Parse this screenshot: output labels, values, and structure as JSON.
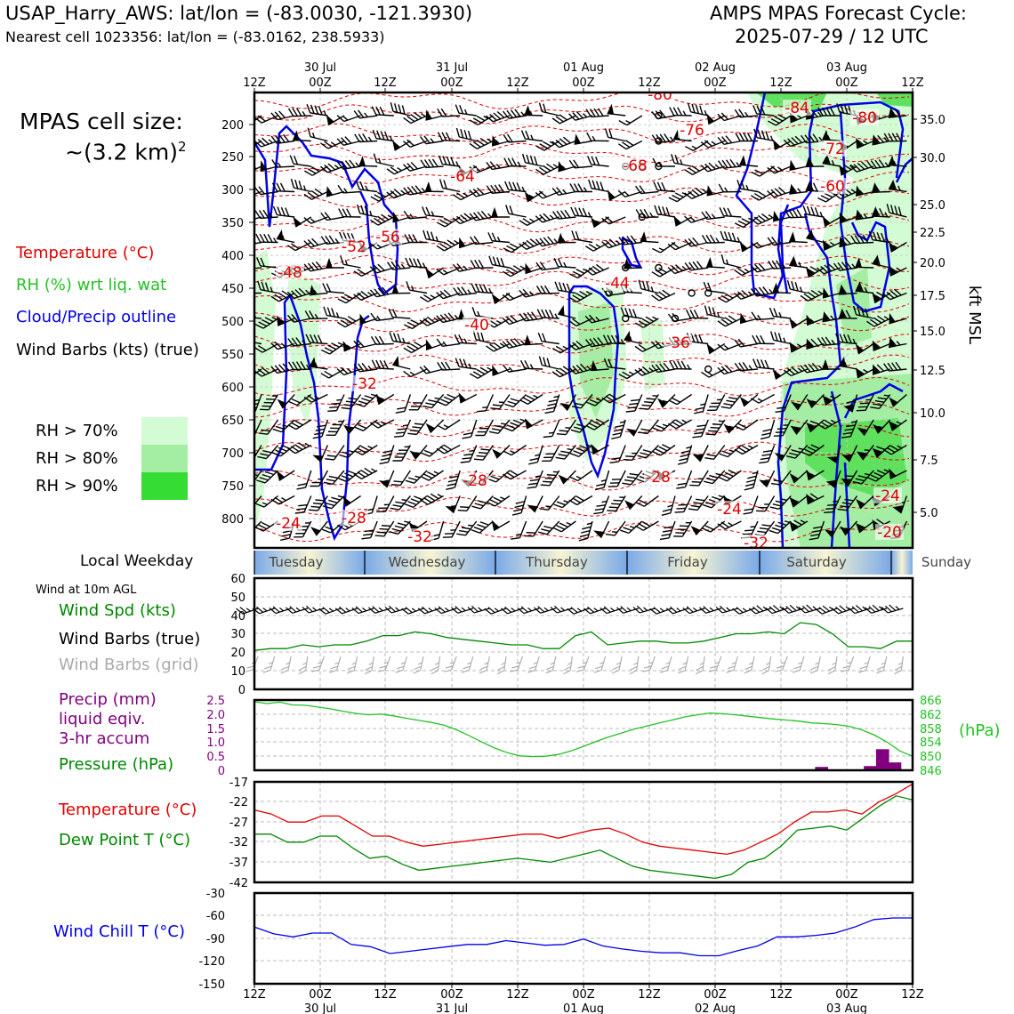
{
  "header": {
    "station_line": "USAP_Harry_AWS: lat/lon = (-83.0030, -121.3930)",
    "cell_line": "Nearest cell 1023356: lat/lon = (-83.0162, 238.5933)",
    "forecast_title_1": "AMPS MPAS Forecast Cycle:",
    "forecast_title_2": "2025-07-29 / 12 UTC"
  },
  "left_legend": {
    "cell_size_1": "MPAS cell size:",
    "cell_size_2": "~(3.2 km)",
    "cell_size_sup": "2",
    "temperature": "Temperature (°C)",
    "rh": "RH (%) wrt liq. wat",
    "cloud": "Cloud/Precip outline",
    "wind_barbs": "Wind Barbs (kts) (true)",
    "rh70": "RH > 70%",
    "rh80": "RH > 80%",
    "rh90": "RH > 90%",
    "local_weekday": "Local Weekday",
    "wind_10m": "Wind at 10m AGL",
    "wind_spd": "Wind Spd (kts)",
    "barbs_true": "Wind Barbs (true)",
    "barbs_grid": "Wind Barbs (grid)",
    "precip_1": "Precip (mm)",
    "precip_2": "liquid eqiv.",
    "precip_3": "3-hr accum",
    "pressure": "Pressure (hPa)",
    "temp2": "Temperature (°C)",
    "dewpoint": "Dew Point T (°C)",
    "windchill": "Wind Chill T (°C)"
  },
  "colors": {
    "temperature": "#e00000",
    "rh_label": "#22c322",
    "cloud": "#0000e6",
    "dewpoint": "#008800",
    "precip": "#800080",
    "grid_barbs": "#aaaaaa",
    "rh70": "#d4fcd4",
    "rh80": "#a3eea3",
    "rh90": "#34dc34"
  },
  "time_axis": {
    "top_ticks": [
      "12Z",
      "00Z",
      "12Z",
      "00Z",
      "12Z",
      "00Z",
      "12Z",
      "00Z",
      "12Z",
      "00Z",
      "12Z"
    ],
    "dates": [
      "30 Jul",
      "31 Jul",
      "01 Aug",
      "02 Aug",
      "03 Aug"
    ]
  },
  "weekdays": [
    "Tuesday",
    "Wednesday",
    "Thursday",
    "Friday",
    "Saturday",
    "Sunday"
  ],
  "chart_data": [
    {
      "type": "heatmap",
      "name": "vertical cross-section",
      "y_left_ticks": [
        "200",
        "250",
        "300",
        "350",
        "400",
        "450",
        "500",
        "550",
        "600",
        "650",
        "700",
        "750",
        "800"
      ],
      "y_right_ticks": [
        "35.0",
        "30.0",
        "25.0",
        "22.5",
        "20.0",
        "17.5",
        "15.0",
        "12.5",
        "10.0",
        "7.5",
        "5.0"
      ],
      "ylabel_right": "kft MSL",
      "temperature_labels": [
        "-80",
        "-84",
        "-80",
        "-76",
        "-72",
        "-68",
        "-64",
        "-60",
        "-56",
        "-52",
        "-48",
        "-44",
        "-40",
        "-36",
        "-32",
        "-28",
        "-28",
        "-28",
        "-24",
        "-24",
        "-24",
        "-32",
        "-32",
        "-20"
      ]
    },
    {
      "type": "line",
      "name": "wind",
      "y_ticks": [
        "60",
        "50",
        "40",
        "30",
        "20",
        "10",
        "0"
      ],
      "ylim": [
        0,
        60
      ],
      "series": [
        {
          "name": "Wind Spd (kts)",
          "color": "#008800",
          "values": [
            21,
            22,
            22,
            24,
            23,
            24,
            24,
            26,
            29,
            29,
            31,
            30,
            28,
            27,
            26,
            25,
            24,
            24,
            22,
            22,
            29,
            31,
            24,
            25,
            26,
            26,
            25,
            25,
            26,
            28,
            30,
            30,
            31,
            30,
            36,
            35,
            30,
            23,
            23,
            22,
            26,
            26
          ]
        }
      ]
    },
    {
      "type": "line",
      "name": "precip-pressure",
      "y_left_ticks": [
        "2.5",
        "2.0",
        "1.5",
        "1.0",
        "0.5",
        "0"
      ],
      "y_right_ticks": [
        "866",
        "862",
        "858",
        "854",
        "850",
        "846"
      ],
      "ylabel_right": "(hPa)",
      "series": [
        {
          "name": "Pressure (hPa)",
          "color": "#22c322",
          "values": [
            865.5,
            865,
            865.4,
            864.6,
            864.5,
            864,
            863.5,
            862.8,
            862.2,
            861.8,
            862,
            861.5,
            860.8,
            860.2,
            859.6,
            858.8,
            857.5,
            855.8,
            854,
            852.3,
            851,
            850.1,
            849.9,
            850,
            850.5,
            851.5,
            852.8,
            854.2,
            855.5,
            856.6,
            857.7,
            858.6,
            859.5,
            860.3,
            861.2,
            861.8,
            862.3,
            862.1,
            861.8,
            861.4,
            861,
            860.6,
            860.3,
            860,
            859.5,
            859.3,
            859,
            858.5,
            857.5,
            856,
            854,
            851.5,
            850
          ]
        },
        {
          "name": "Precip (mm)",
          "color": "#800080",
          "bars": [
            {
              "x": 46,
              "value": 0.12
            },
            {
              "x": 50,
              "value": 0.15
            },
            {
              "x": 51,
              "value": 0.75
            },
            {
              "x": 52,
              "value": 0.28
            }
          ]
        }
      ]
    },
    {
      "type": "line",
      "name": "temperature-dewpoint",
      "y_ticks": [
        "-17",
        "-22",
        "-27",
        "-32",
        "-37",
        "-42"
      ],
      "ylim": [
        -42,
        -17
      ],
      "series": [
        {
          "name": "Temperature (°C)",
          "color": "#e00000",
          "values": [
            -24,
            -25,
            -27,
            -27,
            -25.5,
            -25.5,
            -28,
            -30.5,
            -30.5,
            -32,
            -33,
            -32.5,
            -32,
            -31.5,
            -31,
            -30.5,
            -30,
            -30,
            -31,
            -30,
            -29,
            -28.5,
            -30,
            -32,
            -33,
            -33.5,
            -34,
            -34.5,
            -35,
            -34,
            -32,
            -30,
            -27,
            -24.5,
            -24.5,
            -24,
            -25,
            -22,
            -20,
            -17.5
          ]
        },
        {
          "name": "Dew Point T (°C)",
          "color": "#008800",
          "values": [
            -30,
            -30,
            -32,
            -32,
            -30.5,
            -30.5,
            -33.5,
            -36,
            -35.5,
            -37.5,
            -39,
            -38.5,
            -38,
            -37.5,
            -37,
            -36.5,
            -36,
            -36.5,
            -37,
            -36,
            -35,
            -34,
            -36,
            -38,
            -39,
            -39.5,
            -40,
            -40.5,
            -41,
            -40,
            -37,
            -36,
            -33,
            -29,
            -28.5,
            -28,
            -29,
            -26,
            -23,
            -20.5,
            -21.5
          ]
        }
      ]
    },
    {
      "type": "line",
      "name": "wind-chill",
      "y_ticks": [
        "-30",
        "-60",
        "-90",
        "-120",
        "-150"
      ],
      "ylim": [
        -150,
        -30
      ],
      "series": [
        {
          "name": "Wind Chill T (°C)",
          "color": "#0000e6",
          "values": [
            -75,
            -84,
            -88,
            -83,
            -83,
            -98,
            -101,
            -110,
            -107,
            -104,
            -101,
            -98,
            -98,
            -93,
            -96,
            -99,
            -98,
            -91,
            -100,
            -104,
            -107,
            -109,
            -109,
            -113,
            -113,
            -106,
            -100,
            -88,
            -88,
            -86,
            -83,
            -75,
            -65,
            -63,
            -63
          ]
        }
      ]
    }
  ]
}
